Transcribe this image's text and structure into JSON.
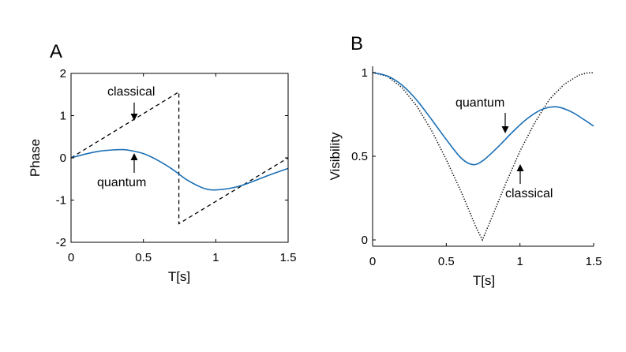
{
  "chart_data": [
    {
      "panel_label": "A",
      "type": "line",
      "xlabel": "T[s]",
      "ylabel": "Phase",
      "xlim": [
        0,
        1.5
      ],
      "ylim": [
        -2,
        2
      ],
      "x_ticks": [
        "0",
        "0.5",
        "1",
        "1.5"
      ],
      "y_ticks": [
        "-2",
        "-1",
        "0",
        "1",
        "2"
      ],
      "series": [
        {
          "name": "classical",
          "style": "dashed",
          "color": "#000000",
          "x": [
            0,
            0.745,
            0.745,
            1.5
          ],
          "y": [
            0,
            1.56,
            -1.56,
            0.0
          ]
        },
        {
          "name": "quantum",
          "style": "solid",
          "color": "#1a6fb5",
          "x": [
            0,
            0.1,
            0.2,
            0.3,
            0.35,
            0.4,
            0.5,
            0.6,
            0.7,
            0.8,
            0.9,
            0.95,
            1.0,
            1.1,
            1.2,
            1.3,
            1.4,
            1.5
          ],
          "y": [
            0,
            0.09,
            0.16,
            0.19,
            0.195,
            0.18,
            0.1,
            -0.06,
            -0.27,
            -0.52,
            -0.7,
            -0.75,
            -0.76,
            -0.72,
            -0.63,
            -0.5,
            -0.37,
            -0.25
          ]
        }
      ],
      "annotations": [
        {
          "text": "classical",
          "target": [
            0.44,
            0.88
          ]
        },
        {
          "text": "quantum",
          "target": [
            0.44,
            0.16
          ]
        }
      ]
    },
    {
      "panel_label": "B",
      "type": "line",
      "xlabel": "T[s]",
      "ylabel": "Visibility",
      "xlim": [
        0,
        1.5
      ],
      "ylim": [
        0,
        1
      ],
      "x_ticks": [
        "0",
        "0.5",
        "1",
        "1.5"
      ],
      "y_ticks": [
        "0",
        "0.5",
        "1"
      ],
      "series": [
        {
          "name": "classical",
          "style": "dotted",
          "color": "#000000",
          "x": [
            0,
            0.1,
            0.2,
            0.3,
            0.4,
            0.5,
            0.6,
            0.7,
            0.745,
            0.8,
            0.9,
            1.0,
            1.1,
            1.2,
            1.3,
            1.4,
            1.45,
            1.5
          ],
          "y": [
            1.0,
            0.978,
            0.91,
            0.8,
            0.654,
            0.48,
            0.29,
            0.08,
            0.0,
            0.115,
            0.33,
            0.53,
            0.7,
            0.84,
            0.93,
            0.985,
            0.997,
            1.0
          ]
        },
        {
          "name": "quantum",
          "style": "solid",
          "color": "#1a6fb5",
          "x": [
            0,
            0.1,
            0.2,
            0.3,
            0.4,
            0.5,
            0.6,
            0.68,
            0.75,
            0.85,
            0.95,
            1.05,
            1.15,
            1.25,
            1.35,
            1.45,
            1.5
          ],
          "y": [
            1.0,
            0.98,
            0.925,
            0.835,
            0.72,
            0.6,
            0.49,
            0.45,
            0.475,
            0.555,
            0.645,
            0.725,
            0.78,
            0.795,
            0.765,
            0.71,
            0.68
          ]
        }
      ],
      "annotations": [
        {
          "text": "quantum",
          "target": [
            0.9,
            0.64
          ]
        },
        {
          "text": "classical",
          "target": [
            0.99,
            0.46
          ]
        }
      ]
    }
  ]
}
